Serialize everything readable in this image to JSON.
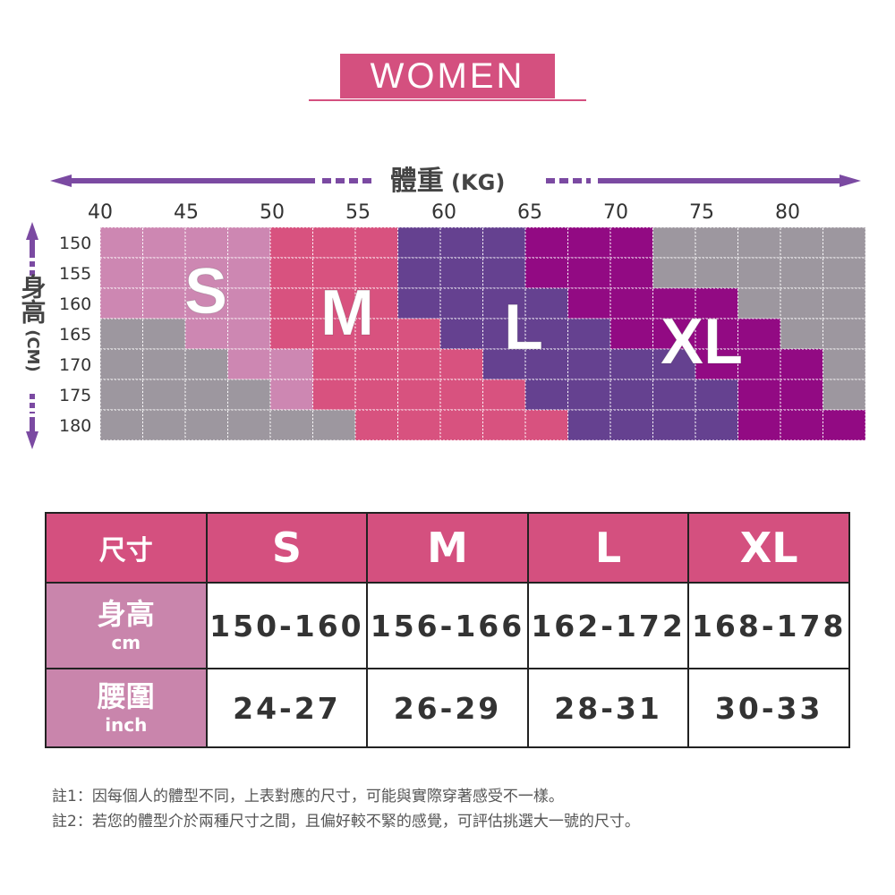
{
  "title": "WOMEN",
  "chart_data": {
    "type": "heatmap",
    "xlabel": "體重",
    "xunit": "(KG)",
    "ylabel_main": "身高",
    "yunit": "(CM)",
    "x_ticks": [
      40,
      45,
      50,
      55,
      60,
      65,
      70,
      75,
      80
    ],
    "y_ticks": [
      150,
      155,
      160,
      165,
      170,
      175,
      180
    ],
    "size_labels": [
      "S",
      "M",
      "L",
      "XL"
    ],
    "colors": {
      "S": "#cd87b2",
      "M": "#d8527f",
      "L": "#654190",
      "XL": "#920a83",
      "none": "#9d979f"
    },
    "grid": [
      [
        "S",
        "S",
        "S",
        "S",
        "M",
        "M",
        "M",
        "L",
        "L",
        "L",
        "XL",
        "XL",
        "XL",
        "none",
        "none",
        "none",
        "none",
        "none"
      ],
      [
        "S",
        "S",
        "S",
        "S",
        "M",
        "M",
        "M",
        "L",
        "L",
        "L",
        "XL",
        "XL",
        "XL",
        "none",
        "none",
        "none",
        "none",
        "none"
      ],
      [
        "S",
        "S",
        "S",
        "S",
        "M",
        "M",
        "M",
        "L",
        "L",
        "L",
        "L",
        "XL",
        "XL",
        "XL",
        "XL",
        "none",
        "none",
        "none"
      ],
      [
        "none",
        "none",
        "S",
        "S",
        "M",
        "M",
        "M",
        "M",
        "L",
        "L",
        "L",
        "L",
        "XL",
        "XL",
        "XL",
        "XL",
        "none",
        "none"
      ],
      [
        "none",
        "none",
        "none",
        "S",
        "S",
        "M",
        "M",
        "M",
        "M",
        "L",
        "L",
        "L",
        "L",
        "L",
        "XL",
        "XL",
        "XL",
        "none"
      ],
      [
        "none",
        "none",
        "none",
        "none",
        "S",
        "M",
        "M",
        "M",
        "M",
        "M",
        "L",
        "L",
        "L",
        "L",
        "L",
        "XL",
        "XL",
        "none"
      ],
      [
        "none",
        "none",
        "none",
        "none",
        "none",
        "none",
        "M",
        "M",
        "M",
        "M",
        "M",
        "L",
        "L",
        "L",
        "L",
        "XL",
        "XL",
        "XL"
      ]
    ]
  },
  "table": {
    "header": [
      "尺寸",
      "S",
      "M",
      "L",
      "XL"
    ],
    "rows": [
      {
        "label": "身高",
        "unit": "cm",
        "values": [
          "150-160",
          "156-166",
          "162-172",
          "168-178"
        ]
      },
      {
        "label": "腰圍",
        "unit": "inch",
        "values": [
          "24-27",
          "26-29",
          "28-31",
          "30-33"
        ]
      }
    ]
  },
  "notes": [
    "註1：因每個人的體型不同，上表對應的尺寸，可能與實際穿著感受不一樣。",
    "註2：若您的體型介於兩種尺寸之間，且偏好較不緊的感覺，可評估挑選大一號的尺寸。"
  ]
}
